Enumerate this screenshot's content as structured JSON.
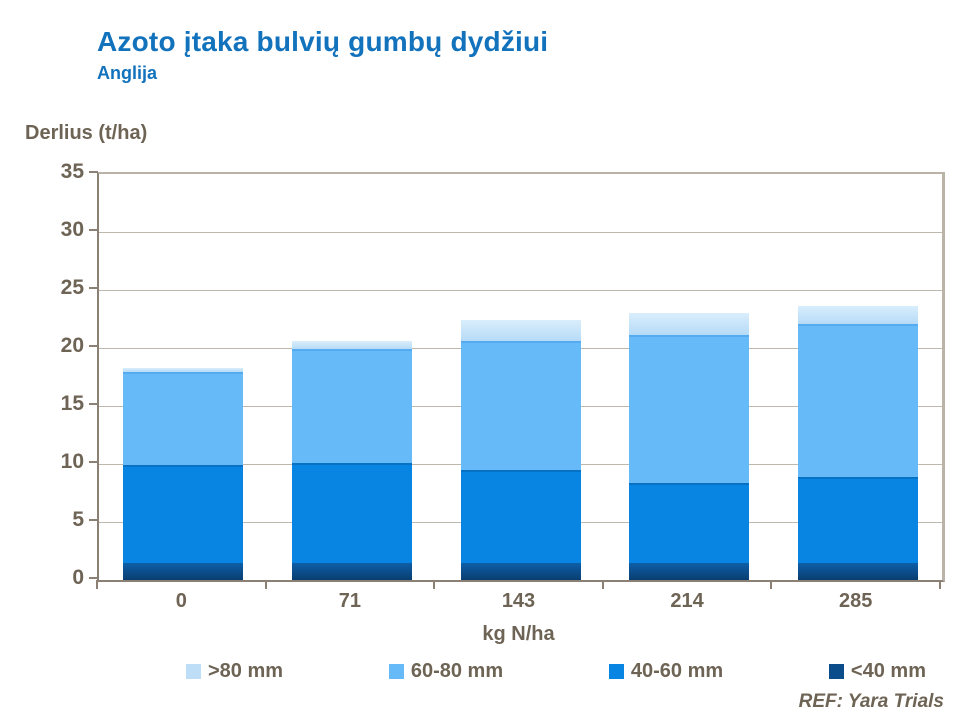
{
  "header": {
    "title": "Azoto įtaka bulvių gumbų dydžiui",
    "subtitle": "Anglija"
  },
  "footer": {
    "reference": "REF: Yara Trials"
  },
  "colors": {
    "title_blue": "#1272bc",
    "text_gray": "#6e6455",
    "axis_line": "#8a8174",
    "gridline": "#bdb7ac",
    "series_lt40": "#0b4d8a",
    "series_40_60": "#0884e2",
    "series_60_80": "#66baf8",
    "series_gt80": "#bedef8"
  },
  "chart_data": {
    "type": "bar",
    "stacked": true,
    "title": "Azoto įtaka bulvių gumbų dydžiui",
    "subtitle": "Anglija",
    "ylabel": "Derlius (t/ha)",
    "xlabel": "kg N/ha",
    "categories": [
      "0",
      "71",
      "143",
      "214",
      "285"
    ],
    "series": [
      {
        "name": "<40 mm",
        "color": "#0b4d8a",
        "values": [
          1.5,
          1.5,
          1.5,
          1.5,
          1.5
        ]
      },
      {
        "name": "40-60 mm",
        "color": "#0884e2",
        "values": [
          8.4,
          8.6,
          8.0,
          6.9,
          7.4
        ]
      },
      {
        "name": "60-80 mm",
        "color": "#66baf8",
        "values": [
          8.0,
          9.8,
          11.1,
          12.7,
          13.2
        ]
      },
      {
        "name": ">80 mm",
        "color": "#bedef8",
        "values": [
          0.4,
          0.7,
          1.8,
          1.9,
          1.5
        ]
      }
    ],
    "totals": [
      18.3,
      20.6,
      22.4,
      23.0,
      23.6
    ],
    "legend_order": [
      ">80 mm",
      "60-80 mm",
      "40-60 mm",
      "<40 mm"
    ],
    "ylim": [
      0,
      35
    ],
    "ytick_step": 5,
    "grid": true,
    "legend_position": "bottom"
  }
}
